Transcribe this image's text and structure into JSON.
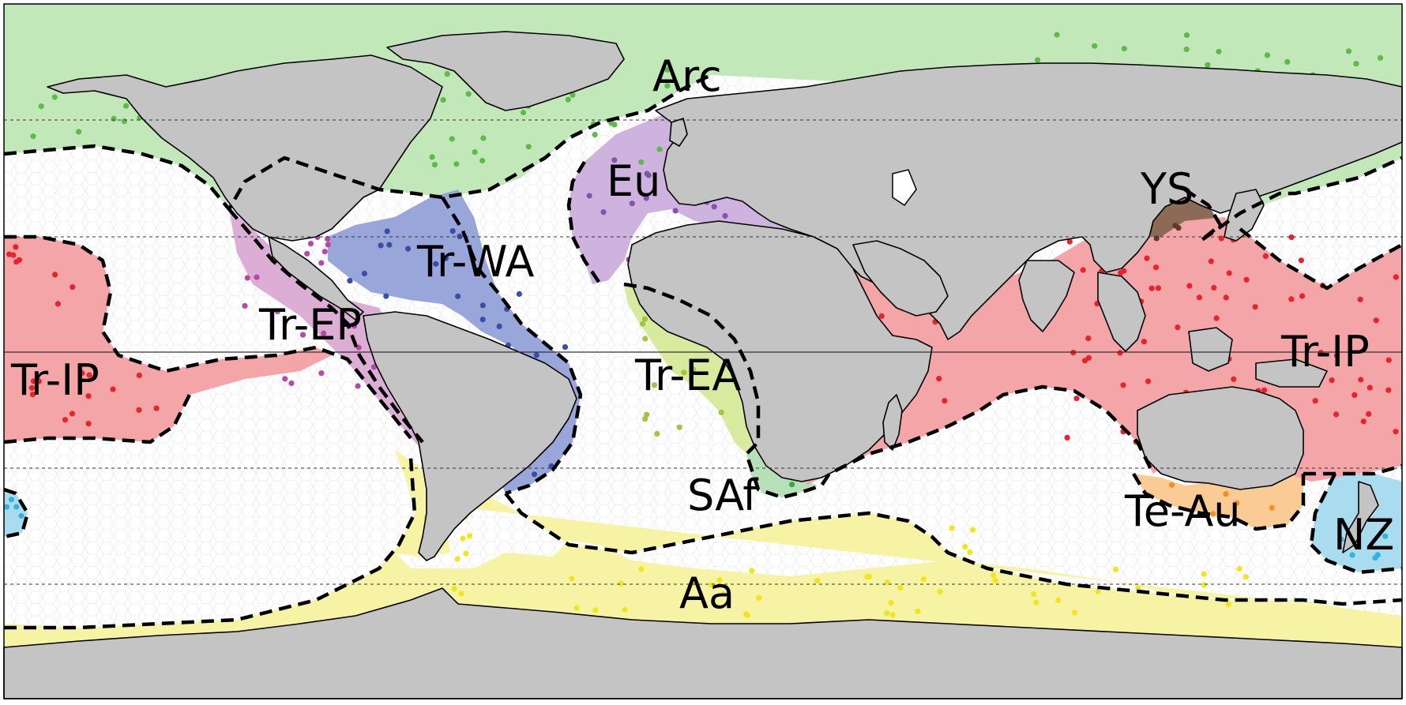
{
  "map": {
    "regions": [
      {
        "code": "Arc",
        "color": "#c2e8ba",
        "dot_color": "#5dbb47"
      },
      {
        "code": "Eu",
        "color": "#cdb3dd",
        "dot_color": "#8653aa"
      },
      {
        "code": "YS",
        "color": "#8c6a55",
        "dot_color": "#5c3b2e"
      },
      {
        "code": "Tr-WA",
        "color": "#98a6da",
        "dot_color": "#3a4ea6"
      },
      {
        "code": "Tr-EP",
        "color": "#dcaed6",
        "dot_color": "#b54aa5"
      },
      {
        "code": "Tr-IP",
        "color": "#f4a5a7",
        "dot_color": "#e8232b"
      },
      {
        "code": "Tr-EA",
        "color": "#d7ea9d",
        "dot_color": "#9fc63c"
      },
      {
        "code": "SAf",
        "color": "#b6e0b8",
        "dot_color": "#3aa84a"
      },
      {
        "code": "Te-Au",
        "color": "#fbcb96",
        "dot_color": "#f5921e"
      },
      {
        "code": "NZ",
        "color": "#a9dcef",
        "dot_color": "#33b2dd"
      },
      {
        "code": "Aa",
        "color": "#f7f3a5",
        "dot_color": "#f1e51e"
      }
    ],
    "labels": {
      "arc": "Arc",
      "eu": "Eu",
      "ys": "YS",
      "tr_wa": "Tr-WA",
      "tr_ep": "Tr-EP",
      "tr_ip_west": "Tr-IP",
      "tr_ip_east": "Tr-IP",
      "tr_ea": "Tr-EA",
      "saf": "SAf",
      "te_au": "Te-Au",
      "nz": "NZ",
      "aa": "Aa"
    },
    "land_color": "#c4c4c4",
    "boundary_style": "dashed-black",
    "latitude_lines": "dashed, equator solid"
  }
}
